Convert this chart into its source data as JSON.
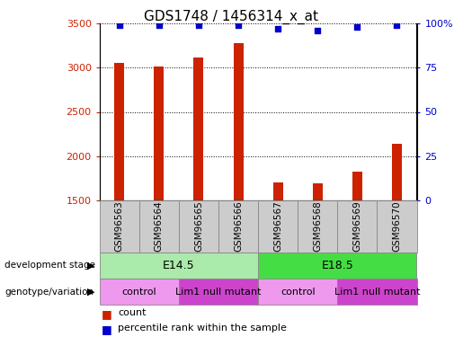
{
  "title": "GDS1748 / 1456314_x_at",
  "samples": [
    "GSM96563",
    "GSM96564",
    "GSM96565",
    "GSM96566",
    "GSM96567",
    "GSM96568",
    "GSM96569",
    "GSM96570"
  ],
  "counts": [
    3055,
    3010,
    3120,
    3280,
    1700,
    1695,
    1820,
    2140
  ],
  "percentiles": [
    99,
    99,
    99,
    99,
    97,
    96,
    98,
    99
  ],
  "ylim_left": [
    1500,
    3500
  ],
  "ylim_right": [
    0,
    100
  ],
  "yticks_left": [
    1500,
    2000,
    2500,
    3000,
    3500
  ],
  "yticks_right": [
    0,
    25,
    50,
    75,
    100
  ],
  "bar_color": "#cc2200",
  "dot_color": "#0000cc",
  "grid_color": "#000000",
  "left_tick_color": "#cc2200",
  "right_tick_color": "#0000cc",
  "development_stages": [
    {
      "label": "E14.5",
      "start": 0,
      "end": 3,
      "color": "#aaeaaa"
    },
    {
      "label": "E18.5",
      "start": 4,
      "end": 7,
      "color": "#44dd44"
    }
  ],
  "genotype_groups": [
    {
      "label": "control",
      "start": 0,
      "end": 1,
      "color": "#ee99ee"
    },
    {
      "label": "Lim1 null mutant",
      "start": 2,
      "end": 3,
      "color": "#cc44cc"
    },
    {
      "label": "control",
      "start": 4,
      "end": 5,
      "color": "#ee99ee"
    },
    {
      "label": "Lim1 null mutant",
      "start": 6,
      "end": 7,
      "color": "#cc44cc"
    }
  ],
  "sample_box_color": "#cccccc",
  "legend_count_color": "#cc2200",
  "legend_percentile_color": "#0000cc",
  "bar_width": 0.25
}
